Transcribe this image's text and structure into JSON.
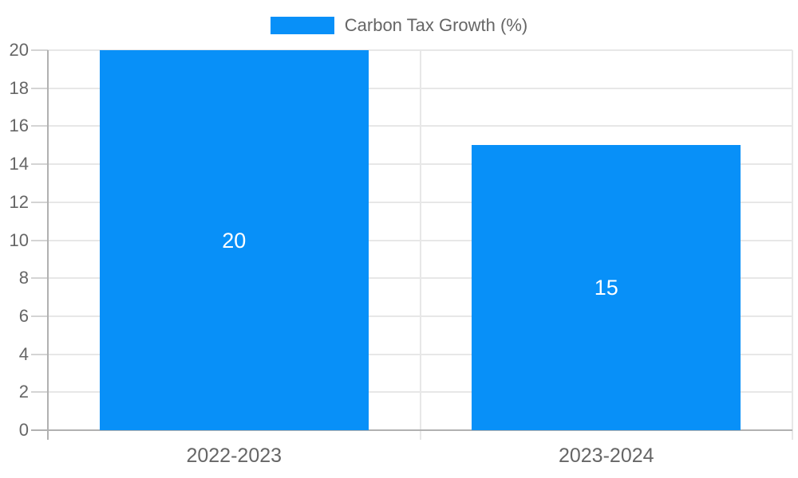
{
  "chart_data": {
    "type": "bar",
    "title": "",
    "categories": [
      "2022-2023",
      "2023-2024"
    ],
    "series": [
      {
        "name": "Carbon Tax Growth (%)",
        "values": [
          20,
          15
        ]
      }
    ],
    "data_labels": [
      "20",
      "15"
    ],
    "xlabel": "",
    "ylabel": "",
    "ylim": [
      0,
      20
    ],
    "ytick_step": 2,
    "ytick_labels": [
      "0",
      "2",
      "4",
      "6",
      "8",
      "10",
      "12",
      "14",
      "16",
      "18",
      "20"
    ],
    "grid": true,
    "legend_position": "top",
    "colors": {
      "bar": "#0890F8",
      "grid": "#e7e7e7",
      "axis": "#b1b1b1",
      "tick": "#d4d4d4",
      "tick_text": "#666666",
      "data_label_text": "#ffffff",
      "background": "#ffffff"
    }
  }
}
